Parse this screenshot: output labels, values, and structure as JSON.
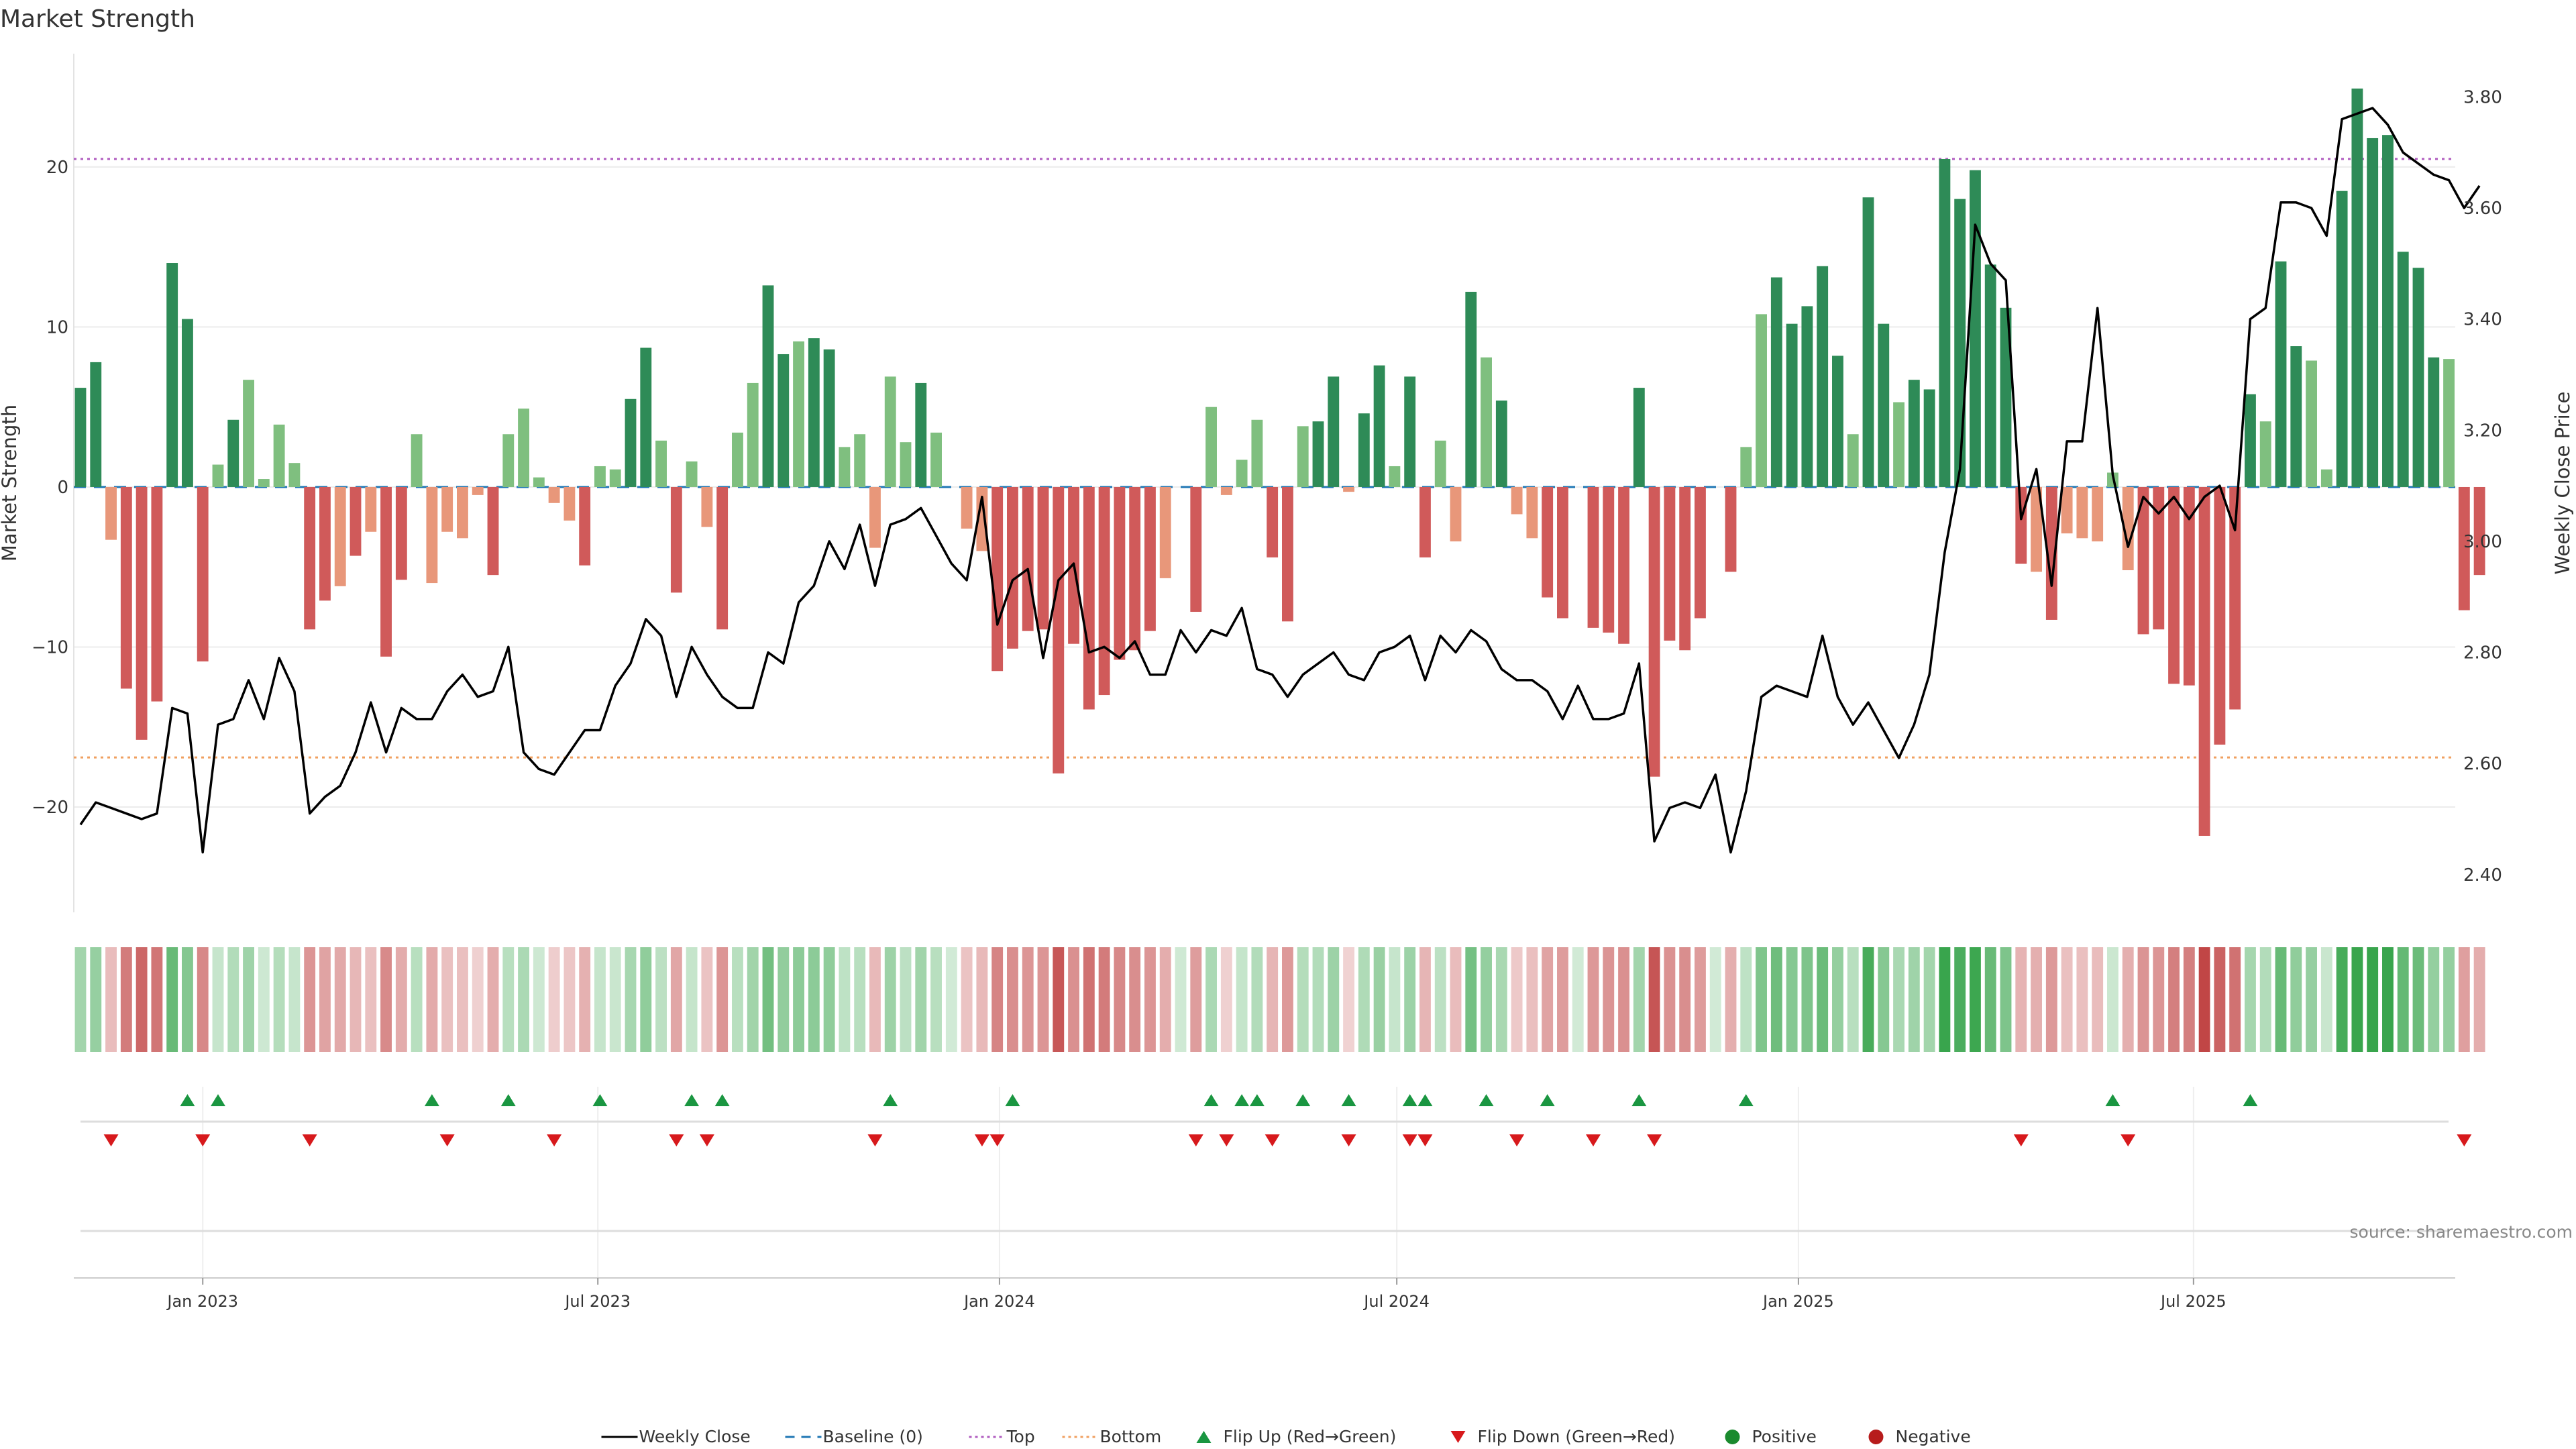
{
  "page": {
    "title": "Market Strength",
    "source": "source: sharemaestro.com"
  },
  "chart_data": {
    "type": "bar",
    "title": "Market Strength",
    "ylabel": "Market Strength",
    "y2label": "Weekly Close Price",
    "ylim": [
      -27,
      27.5
    ],
    "y2lim": [
      2.32,
      3.89
    ],
    "yticks": [
      -20,
      -10,
      0,
      10,
      20
    ],
    "y2ticks": [
      2.4,
      2.6,
      2.8,
      3.0,
      3.2,
      3.4,
      3.6,
      3.8
    ],
    "y2tick_labels": [
      "2.40",
      "2.60",
      "2.80",
      "3.00",
      "3.20",
      "3.40",
      "3.60",
      "3.80"
    ],
    "x_start": "2022-11-06",
    "x_end": "2025-10-12",
    "xticks": [
      {
        "date": "2023-01-01",
        "label": "Jan 2023"
      },
      {
        "date": "2023-07-01",
        "label": "Jul 2023"
      },
      {
        "date": "2024-01-01",
        "label": "Jan 2024"
      },
      {
        "date": "2024-07-01",
        "label": "Jul 2024"
      },
      {
        "date": "2025-01-01",
        "label": "Jan 2025"
      },
      {
        "date": "2025-07-01",
        "label": "Jul 2025"
      }
    ],
    "top_threshold": 20.5,
    "bottom_threshold": -16.9,
    "grid": true,
    "legend_position": "bottom",
    "colors": {
      "strong_positive": "#2e8b57",
      "weak_positive": "#7fbf7f",
      "strong_negative": "#d05a5a",
      "weak_negative": "#e8977a",
      "weekly_close": "#000000",
      "baseline": "#1f77b4",
      "top": "#b05cc0",
      "bottom": "#f0a060",
      "flip_up": "#1a9641",
      "flip_down": "#d7191c",
      "positive_dot": "#1a8a2e",
      "negative_dot": "#b71c1c"
    },
    "weeks": [
      {
        "date": "2022-11-06",
        "strength": 6.2,
        "close": 2.49
      },
      {
        "date": "2022-11-13",
        "strength": 7.8,
        "close": 2.53
      },
      {
        "date": "2022-11-20",
        "strength": -3.3,
        "close": 2.52
      },
      {
        "date": "2022-11-27",
        "strength": -12.6,
        "close": 2.51
      },
      {
        "date": "2022-12-04",
        "strength": -15.8,
        "close": 2.5
      },
      {
        "date": "2022-12-11",
        "strength": -13.4,
        "close": 2.51
      },
      {
        "date": "2022-12-18",
        "strength": 14.0,
        "close": 2.7
      },
      {
        "date": "2022-12-25",
        "strength": 10.5,
        "close": 2.69
      },
      {
        "date": "2023-01-01",
        "strength": -10.9,
        "close": 2.44
      },
      {
        "date": "2023-01-08",
        "strength": 1.4,
        "close": 2.67
      },
      {
        "date": "2023-01-15",
        "strength": 4.2,
        "close": 2.68
      },
      {
        "date": "2023-01-22",
        "strength": 6.7,
        "close": 2.75
      },
      {
        "date": "2023-01-29",
        "strength": 0.5,
        "close": 2.68
      },
      {
        "date": "2023-02-05",
        "strength": 3.9,
        "close": 2.79
      },
      {
        "date": "2023-02-12",
        "strength": 1.5,
        "close": 2.73
      },
      {
        "date": "2023-02-19",
        "strength": -8.9,
        "close": 2.51
      },
      {
        "date": "2023-02-26",
        "strength": -7.1,
        "close": 2.54
      },
      {
        "date": "2023-03-05",
        "strength": -6.2,
        "close": 2.56
      },
      {
        "date": "2023-03-12",
        "strength": -4.3,
        "close": 2.62
      },
      {
        "date": "2023-03-19",
        "strength": -2.8,
        "close": 2.71
      },
      {
        "date": "2023-03-26",
        "strength": -10.6,
        "close": 2.62
      },
      {
        "date": "2023-04-02",
        "strength": -5.8,
        "close": 2.7
      },
      {
        "date": "2023-04-09",
        "strength": 3.3,
        "close": 2.68
      },
      {
        "date": "2023-04-16",
        "strength": -6.0,
        "close": 2.68
      },
      {
        "date": "2023-04-23",
        "strength": -2.8,
        "close": 2.73
      },
      {
        "date": "2023-04-30",
        "strength": -3.2,
        "close": 2.76
      },
      {
        "date": "2023-05-07",
        "strength": -0.5,
        "close": 2.72
      },
      {
        "date": "2023-05-14",
        "strength": -5.5,
        "close": 2.73
      },
      {
        "date": "2023-05-21",
        "strength": 3.3,
        "close": 2.81
      },
      {
        "date": "2023-05-28",
        "strength": 4.9,
        "close": 2.62
      },
      {
        "date": "2023-06-04",
        "strength": 0.6,
        "close": 2.59
      },
      {
        "date": "2023-06-11",
        "strength": -1.0,
        "close": 2.58
      },
      {
        "date": "2023-06-18",
        "strength": -2.1,
        "close": 2.62
      },
      {
        "date": "2023-06-25",
        "strength": -4.9,
        "close": 2.66
      },
      {
        "date": "2023-07-02",
        "strength": 1.3,
        "close": 2.66
      },
      {
        "date": "2023-07-09",
        "strength": 1.1,
        "close": 2.74
      },
      {
        "date": "2023-07-16",
        "strength": 5.5,
        "close": 2.78
      },
      {
        "date": "2023-07-23",
        "strength": 8.7,
        "close": 2.86
      },
      {
        "date": "2023-07-30",
        "strength": 2.9,
        "close": 2.83
      },
      {
        "date": "2023-08-06",
        "strength": -6.6,
        "close": 2.72
      },
      {
        "date": "2023-08-13",
        "strength": 1.6,
        "close": 2.81
      },
      {
        "date": "2023-08-20",
        "strength": -2.5,
        "close": 2.76
      },
      {
        "date": "2023-08-27",
        "strength": -8.9,
        "close": 2.72
      },
      {
        "date": "2023-09-03",
        "strength": 3.4,
        "close": 2.7
      },
      {
        "date": "2023-09-10",
        "strength": 6.5,
        "close": 2.7
      },
      {
        "date": "2023-09-17",
        "strength": 12.6,
        "close": 2.8
      },
      {
        "date": "2023-09-24",
        "strength": 8.3,
        "close": 2.78
      },
      {
        "date": "2023-10-01",
        "strength": 9.1,
        "close": 2.89
      },
      {
        "date": "2023-10-08",
        "strength": 9.3,
        "close": 2.92
      },
      {
        "date": "2023-10-15",
        "strength": 8.6,
        "close": 3.0
      },
      {
        "date": "2023-10-22",
        "strength": 2.5,
        "close": 2.95
      },
      {
        "date": "2023-10-29",
        "strength": 3.3,
        "close": 3.03
      },
      {
        "date": "2023-11-05",
        "strength": -3.8,
        "close": 2.92
      },
      {
        "date": "2023-11-12",
        "strength": 6.9,
        "close": 3.03
      },
      {
        "date": "2023-11-19",
        "strength": 2.8,
        "close": 3.04
      },
      {
        "date": "2023-11-26",
        "strength": 6.5,
        "close": 3.06
      },
      {
        "date": "2023-12-03",
        "strength": 3.4,
        "close": 3.01
      },
      {
        "date": "2023-12-10",
        "strength": 0.0,
        "close": 2.96
      },
      {
        "date": "2023-12-17",
        "strength": -2.6,
        "close": 2.93
      },
      {
        "date": "2023-12-24",
        "strength": -4.0,
        "close": 3.08
      },
      {
        "date": "2023-12-31",
        "strength": -11.5,
        "close": 2.85
      },
      {
        "date": "2024-01-07",
        "strength": -10.1,
        "close": 2.93
      },
      {
        "date": "2024-01-14",
        "strength": -9.0,
        "close": 2.95
      },
      {
        "date": "2024-01-21",
        "strength": -8.9,
        "close": 2.79
      },
      {
        "date": "2024-01-28",
        "strength": -17.9,
        "close": 2.93
      },
      {
        "date": "2024-02-04",
        "strength": -9.8,
        "close": 2.96
      },
      {
        "date": "2024-02-11",
        "strength": -13.9,
        "close": 2.8
      },
      {
        "date": "2024-02-18",
        "strength": -13.0,
        "close": 2.81
      },
      {
        "date": "2024-02-25",
        "strength": -10.8,
        "close": 2.79
      },
      {
        "date": "2024-03-03",
        "strength": -10.2,
        "close": 2.82
      },
      {
        "date": "2024-03-10",
        "strength": -9.0,
        "close": 2.76
      },
      {
        "date": "2024-03-17",
        "strength": -5.7,
        "close": 2.76
      },
      {
        "date": "2024-03-24",
        "strength": 0.2,
        "close": 2.84
      },
      {
        "date": "2024-03-31",
        "strength": -7.8,
        "close": 2.8
      },
      {
        "date": "2024-04-07",
        "strength": 5.0,
        "close": 2.84
      },
      {
        "date": "2024-04-14",
        "strength": -0.5,
        "close": 2.83
      },
      {
        "date": "2024-04-21",
        "strength": 1.7,
        "close": 2.88
      },
      {
        "date": "2024-04-28",
        "strength": 4.2,
        "close": 2.77
      },
      {
        "date": "2024-05-05",
        "strength": -4.4,
        "close": 2.76
      },
      {
        "date": "2024-05-12",
        "strength": -8.4,
        "close": 2.72
      },
      {
        "date": "2024-05-19",
        "strength": 3.8,
        "close": 2.76
      },
      {
        "date": "2024-05-26",
        "strength": 4.1,
        "close": 2.78
      },
      {
        "date": "2024-06-02",
        "strength": 6.9,
        "close": 2.8
      },
      {
        "date": "2024-06-09",
        "strength": -0.3,
        "close": 2.76
      },
      {
        "date": "2024-06-16",
        "strength": 4.6,
        "close": 2.75
      },
      {
        "date": "2024-06-23",
        "strength": 7.6,
        "close": 2.8
      },
      {
        "date": "2024-06-30",
        "strength": 1.3,
        "close": 2.81
      },
      {
        "date": "2024-07-07",
        "strength": 6.9,
        "close": 2.83
      },
      {
        "date": "2024-07-14",
        "strength": -4.4,
        "close": 2.75
      },
      {
        "date": "2024-07-21",
        "strength": 2.9,
        "close": 2.83
      },
      {
        "date": "2024-07-28",
        "strength": -3.4,
        "close": 2.8
      },
      {
        "date": "2024-08-04",
        "strength": 12.2,
        "close": 2.84
      },
      {
        "date": "2024-08-11",
        "strength": 8.1,
        "close": 2.82
      },
      {
        "date": "2024-08-18",
        "strength": 5.4,
        "close": 2.77
      },
      {
        "date": "2024-08-25",
        "strength": -1.7,
        "close": 2.75
      },
      {
        "date": "2024-09-01",
        "strength": -3.2,
        "close": 2.75
      },
      {
        "date": "2024-09-08",
        "strength": -6.9,
        "close": 2.73
      },
      {
        "date": "2024-09-15",
        "strength": -8.2,
        "close": 2.68
      },
      {
        "date": "2024-09-22",
        "strength": 0.1,
        "close": 2.74
      },
      {
        "date": "2024-09-29",
        "strength": -8.8,
        "close": 2.68
      },
      {
        "date": "2024-10-06",
        "strength": -9.1,
        "close": 2.68
      },
      {
        "date": "2024-10-13",
        "strength": -9.8,
        "close": 2.69
      },
      {
        "date": "2024-10-20",
        "strength": 6.2,
        "close": 2.78
      },
      {
        "date": "2024-10-27",
        "strength": -18.1,
        "close": 2.46
      },
      {
        "date": "2024-11-03",
        "strength": -9.6,
        "close": 2.52
      },
      {
        "date": "2024-11-10",
        "strength": -10.2,
        "close": 2.53
      },
      {
        "date": "2024-11-17",
        "strength": -8.2,
        "close": 2.52
      },
      {
        "date": "2024-11-24",
        "strength": 0.1,
        "close": 2.58
      },
      {
        "date": "2024-12-01",
        "strength": -5.3,
        "close": 2.44
      },
      {
        "date": "2024-12-08",
        "strength": 2.5,
        "close": 2.55
      },
      {
        "date": "2024-12-15",
        "strength": 10.8,
        "close": 2.72
      },
      {
        "date": "2024-12-22",
        "strength": 13.1,
        "close": 2.74
      },
      {
        "date": "2024-12-29",
        "strength": 10.2,
        "close": 2.73
      },
      {
        "date": "2025-01-05",
        "strength": 11.3,
        "close": 2.72
      },
      {
        "date": "2025-01-12",
        "strength": 13.8,
        "close": 2.83
      },
      {
        "date": "2025-01-19",
        "strength": 8.2,
        "close": 2.72
      },
      {
        "date": "2025-01-26",
        "strength": 3.3,
        "close": 2.67
      },
      {
        "date": "2025-02-02",
        "strength": 18.1,
        "close": 2.71
      },
      {
        "date": "2025-02-09",
        "strength": 10.2,
        "close": 2.66
      },
      {
        "date": "2025-02-16",
        "strength": 5.3,
        "close": 2.61
      },
      {
        "date": "2025-02-23",
        "strength": 6.7,
        "close": 2.67
      },
      {
        "date": "2025-03-02",
        "strength": 6.1,
        "close": 2.76
      },
      {
        "date": "2025-03-09",
        "strength": 20.5,
        "close": 2.98
      },
      {
        "date": "2025-03-16",
        "strength": 18.0,
        "close": 3.13
      },
      {
        "date": "2025-03-23",
        "strength": 19.8,
        "close": 3.57
      },
      {
        "date": "2025-03-30",
        "strength": 13.9,
        "close": 3.5
      },
      {
        "date": "2025-04-06",
        "strength": 11.2,
        "close": 3.47
      },
      {
        "date": "2025-04-13",
        "strength": -4.8,
        "close": 3.04
      },
      {
        "date": "2025-04-20",
        "strength": -5.3,
        "close": 3.13
      },
      {
        "date": "2025-04-27",
        "strength": -8.3,
        "close": 2.92
      },
      {
        "date": "2025-05-04",
        "strength": -2.9,
        "close": 3.18
      },
      {
        "date": "2025-05-11",
        "strength": -3.2,
        "close": 3.18
      },
      {
        "date": "2025-05-18",
        "strength": -3.4,
        "close": 3.42
      },
      {
        "date": "2025-05-25",
        "strength": 0.9,
        "close": 3.12
      },
      {
        "date": "2025-06-01",
        "strength": -5.2,
        "close": 2.99
      },
      {
        "date": "2025-06-08",
        "strength": -9.2,
        "close": 3.08
      },
      {
        "date": "2025-06-15",
        "strength": -8.9,
        "close": 3.05
      },
      {
        "date": "2025-06-22",
        "strength": -12.3,
        "close": 3.08
      },
      {
        "date": "2025-06-29",
        "strength": -12.4,
        "close": 3.04
      },
      {
        "date": "2025-07-06",
        "strength": -21.8,
        "close": 3.08
      },
      {
        "date": "2025-07-13",
        "strength": -16.1,
        "close": 3.1
      },
      {
        "date": "2025-07-20",
        "strength": -13.9,
        "close": 3.02
      },
      {
        "date": "2025-07-27",
        "strength": 5.8,
        "close": 3.4
      },
      {
        "date": "2025-08-03",
        "strength": 4.1,
        "close": 3.42
      },
      {
        "date": "2025-08-10",
        "strength": 14.1,
        "close": 3.61
      },
      {
        "date": "2025-08-17",
        "strength": 8.8,
        "close": 3.61
      },
      {
        "date": "2025-08-24",
        "strength": 7.9,
        "close": 3.6
      },
      {
        "date": "2025-08-31",
        "strength": 1.1,
        "close": 3.55
      },
      {
        "date": "2025-09-07",
        "strength": 18.5,
        "close": 3.76
      },
      {
        "date": "2025-09-14",
        "strength": 24.9,
        "close": 3.77
      },
      {
        "date": "2025-09-21",
        "strength": 21.8,
        "close": 3.78
      },
      {
        "date": "2025-09-28",
        "strength": 22.0,
        "close": 3.75
      },
      {
        "date": "2025-10-05",
        "strength": 14.7,
        "close": 3.7
      },
      {
        "date": "2025-10-12",
        "strength": 13.7,
        "close": 3.68
      },
      {
        "date": "2025-10-19",
        "strength": 8.1,
        "close": 3.66
      },
      {
        "date": "2025-10-26",
        "strength": 8.0,
        "close": 3.65
      },
      {
        "date": "2025-11-02",
        "strength": -7.7,
        "close": 3.6
      },
      {
        "date": "2025-11-09",
        "strength": -5.5,
        "close": 3.64
      }
    ],
    "flip_up_dates": [
      "2022-12-25",
      "2023-01-08",
      "2023-04-16",
      "2023-05-21",
      "2023-07-02",
      "2023-08-13",
      "2023-08-27",
      "2023-11-12",
      "2024-01-07",
      "2024-04-07",
      "2024-04-21",
      "2024-04-28",
      "2024-05-19",
      "2024-06-09",
      "2024-07-07",
      "2024-07-14",
      "2024-08-11",
      "2024-09-08",
      "2024-10-20",
      "2024-12-08",
      "2025-05-25",
      "2025-07-27"
    ],
    "flip_down_dates": [
      "2022-11-20",
      "2023-01-01",
      "2023-02-19",
      "2023-04-23",
      "2023-06-11",
      "2023-08-06",
      "2023-08-20",
      "2023-11-05",
      "2023-12-24",
      "2023-12-31",
      "2024-03-31",
      "2024-04-14",
      "2024-05-05",
      "2024-06-09",
      "2024-07-07",
      "2024-07-14",
      "2024-08-25",
      "2024-09-29",
      "2024-10-27",
      "2025-04-13",
      "2025-06-01",
      "2025-11-02"
    ],
    "legend": [
      {
        "label": "Weekly Close",
        "kind": "line-solid",
        "color": "#000000"
      },
      {
        "label": "Baseline (0)",
        "kind": "line-dashed",
        "color": "#1f77b4"
      },
      {
        "label": "Top",
        "kind": "line-dotted",
        "color": "#b05cc0"
      },
      {
        "label": "Bottom",
        "kind": "line-dotted",
        "color": "#f0a060"
      },
      {
        "label": "Flip Up (Red→Green)",
        "kind": "triangle-up",
        "color": "#1a9641"
      },
      {
        "label": "Flip Down (Green→Red)",
        "kind": "triangle-down",
        "color": "#d7191c"
      },
      {
        "label": "Positive",
        "kind": "dot",
        "color": "#1a8a2e"
      },
      {
        "label": "Negative",
        "kind": "dot",
        "color": "#b71c1c"
      }
    ]
  }
}
